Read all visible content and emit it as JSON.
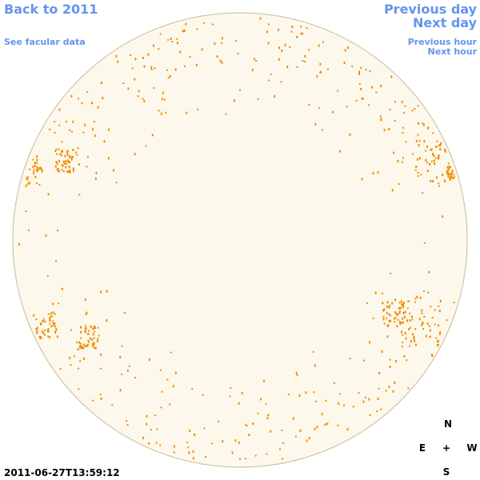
{
  "nav": {
    "back": "Back to 2011",
    "facular": "See facular data",
    "previous_day": "Previous day",
    "next_day": "Next day",
    "previous_hour": "Previous hour",
    "next_hour": "Next hour"
  },
  "timestamp": "2011-06-27T13:59:12",
  "compass": {
    "north": "N",
    "east": "E",
    "center": "+",
    "west": "W",
    "south": "S"
  }
}
